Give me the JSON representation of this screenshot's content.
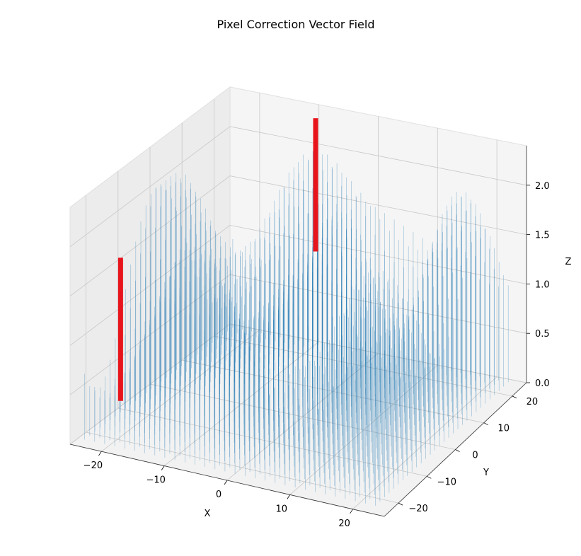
{
  "chart_data": {
    "type": "quiver3d",
    "title": "Pixel Correction Vector Field",
    "xlabel": "X",
    "ylabel": "Y",
    "zlabel": "Z",
    "xlim": [
      -25,
      25
    ],
    "ylim": [
      -25,
      25
    ],
    "zlim": [
      0,
      2.4
    ],
    "x_ticks": [
      -20,
      -10,
      0,
      10,
      20
    ],
    "y_ticks": [
      -20,
      -10,
      0,
      10,
      20
    ],
    "z_ticks": [
      0.0,
      0.5,
      1.0,
      1.5,
      2.0
    ],
    "x_tick_labels": [
      "−20",
      "−10",
      "0",
      "10",
      "20"
    ],
    "y_tick_labels": [
      "−20",
      "−10",
      "0",
      "10",
      "20"
    ],
    "z_tick_labels": [
      "0.0",
      "0.5",
      "1.0",
      "1.5",
      "2.0"
    ],
    "grid": true,
    "vector_color": "#1f77b4",
    "highlight_color": "#e8141c",
    "field": {
      "grid_range": [
        -24,
        24
      ],
      "base_z": 0,
      "magnitude_range": [
        0.3,
        2.1
      ]
    },
    "highlighted_vectors": [
      {
        "x": -21,
        "y": -17,
        "z0": 0.3,
        "z1": 1.75
      },
      {
        "x": -9,
        "y": 22,
        "z0": 1.0,
        "z1": 2.35
      }
    ]
  }
}
